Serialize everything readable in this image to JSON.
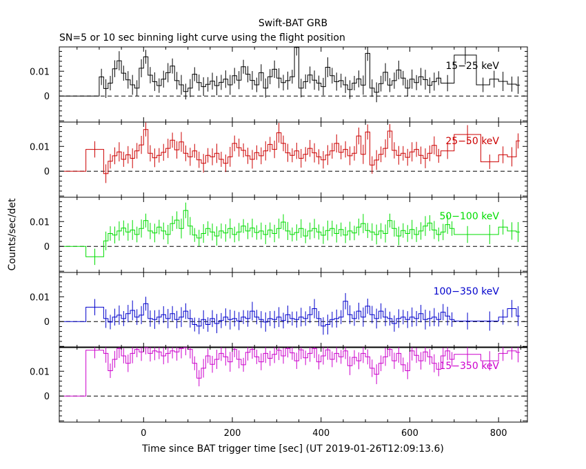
{
  "title": "Swift-BAT GRB",
  "subtitle": "SN=5 or 10 sec binning light curve using the flight position",
  "xlabel": "Time since BAT trigger time [sec] (UT 2019-01-26T12:09:13.6)",
  "ylabel": "Counts/sec/det",
  "x_tick_labels": [
    "0",
    "200",
    "400",
    "600",
    "800"
  ],
  "y_tick_labels": [
    "0",
    "0.01"
  ],
  "chart_data": {
    "type": "line",
    "title": "Swift-BAT GRB",
    "subtitle": "SN=5 or 10 sec binning light curve using the flight position",
    "xlabel": "Time since BAT trigger time [sec] (UT 2019-01-26T12:09:13.6)",
    "ylabel": "Counts/sec/det",
    "xlim": [
      -190,
      865
    ],
    "xticks": [
      0,
      200,
      400,
      600,
      800
    ],
    "grid": false,
    "panels": [
      {
        "name": "15-25 keV",
        "label": "15−25 keV",
        "color": "#000000",
        "ylim": [
          -0.0105,
          0.0198
        ],
        "yticks": [
          0,
          0.01
        ],
        "x": [
          -180,
          -100,
          -90,
          -80,
          -70,
          -60,
          -50,
          -40,
          -30,
          -20,
          -10,
          0,
          10,
          20,
          30,
          40,
          50,
          60,
          70,
          80,
          90,
          100,
          110,
          120,
          130,
          140,
          150,
          160,
          170,
          180,
          190,
          200,
          210,
          220,
          230,
          240,
          250,
          260,
          270,
          280,
          290,
          300,
          310,
          320,
          330,
          340,
          350,
          360,
          370,
          380,
          390,
          400,
          410,
          420,
          430,
          440,
          450,
          460,
          470,
          480,
          490,
          500,
          510,
          520,
          530,
          540,
          550,
          560,
          570,
          580,
          590,
          600,
          610,
          620,
          630,
          640,
          650,
          660,
          670,
          700,
          750,
          780,
          800,
          820,
          840
        ],
        "values": [
          0.0,
          0.0077,
          0.003,
          0.0052,
          0.011,
          0.0142,
          0.0092,
          0.0065,
          0.0045,
          0.0032,
          0.0112,
          0.0158,
          0.0084,
          0.0058,
          0.0042,
          0.0068,
          0.0094,
          0.0121,
          0.0062,
          0.0045,
          0.0018,
          0.0032,
          0.0088,
          0.0054,
          0.0038,
          0.0047,
          0.006,
          0.0042,
          0.0055,
          0.0068,
          0.0045,
          0.0082,
          0.0064,
          0.0118,
          0.0088,
          0.0063,
          0.0045,
          0.0094,
          0.0032,
          0.0078,
          0.0108,
          0.0072,
          0.0054,
          0.0062,
          0.0078,
          0.0196,
          0.0032,
          0.0058,
          0.0085,
          0.0064,
          0.0052,
          0.0038,
          0.0116,
          0.0082,
          0.0058,
          0.0062,
          0.0045,
          0.0026,
          0.0052,
          0.0069,
          0.0044,
          0.0172,
          0.0032,
          0.0015,
          0.005,
          0.0096,
          0.0044,
          0.0062,
          0.0105,
          0.0072,
          0.0032,
          0.0068,
          0.0054,
          0.0078,
          0.0066,
          0.0043,
          0.0058,
          0.0072,
          0.0052,
          0.0165,
          0.0045,
          0.0068,
          0.0059,
          0.0048,
          0.0044
        ]
      },
      {
        "name": "25-50 keV",
        "label": "25−50 keV",
        "color": "#cc0000",
        "ylim": [
          -0.0105,
          0.0198
        ],
        "yticks": [
          0,
          0.01
        ],
        "x": [
          -180,
          -130,
          -90,
          -80,
          -70,
          -60,
          -50,
          -40,
          -30,
          -20,
          -10,
          0,
          10,
          20,
          30,
          40,
          50,
          60,
          70,
          80,
          90,
          100,
          110,
          120,
          130,
          140,
          150,
          160,
          170,
          180,
          190,
          200,
          210,
          220,
          230,
          240,
          250,
          260,
          270,
          280,
          290,
          300,
          310,
          320,
          330,
          340,
          350,
          360,
          370,
          380,
          390,
          400,
          410,
          420,
          430,
          440,
          450,
          460,
          470,
          480,
          490,
          500,
          510,
          520,
          530,
          540,
          550,
          560,
          570,
          580,
          590,
          600,
          610,
          620,
          630,
          640,
          650,
          660,
          670,
          700,
          760,
          800,
          820,
          840
        ],
        "values": [
          0.0,
          0.0088,
          -0.001,
          0.004,
          0.0062,
          0.0078,
          0.0048,
          0.0066,
          0.0052,
          0.0082,
          0.0106,
          0.0168,
          0.0072,
          0.0054,
          0.0064,
          0.0076,
          0.0092,
          0.0125,
          0.0086,
          0.0118,
          0.0072,
          0.0058,
          0.0082,
          0.0046,
          0.0032,
          0.0064,
          0.0058,
          0.0072,
          0.0048,
          0.0032,
          0.0058,
          0.0112,
          0.0095,
          0.0084,
          0.0062,
          0.0048,
          0.0075,
          0.0062,
          0.0082,
          0.0108,
          0.0088,
          0.0155,
          0.0112,
          0.0074,
          0.0064,
          0.0082,
          0.0052,
          0.0068,
          0.0092,
          0.0074,
          0.0058,
          0.0046,
          0.0065,
          0.0082,
          0.0112,
          0.0076,
          0.0088,
          0.0062,
          0.0072,
          0.0142,
          0.0068,
          0.0158,
          0.0025,
          0.0045,
          0.0068,
          0.0092,
          0.0162,
          0.0084,
          0.0064,
          0.0072,
          0.0056,
          0.0078,
          0.0088,
          0.0064,
          0.0052,
          0.0072,
          0.0104,
          0.0062,
          0.0082,
          0.0148,
          0.0038,
          0.0066,
          0.0058,
          0.0122
        ]
      },
      {
        "name": "50-100 keV",
        "label": "50−100 keV",
        "color": "#00dd00",
        "ylim": [
          -0.0105,
          0.0198
        ],
        "yticks": [
          0,
          0.01
        ],
        "x": [
          -180,
          -130,
          -90,
          -80,
          -70,
          -60,
          -50,
          -40,
          -30,
          -20,
          -10,
          0,
          10,
          20,
          30,
          40,
          50,
          60,
          70,
          80,
          90,
          100,
          110,
          120,
          130,
          140,
          150,
          160,
          170,
          180,
          190,
          200,
          210,
          220,
          230,
          240,
          250,
          260,
          270,
          280,
          290,
          300,
          310,
          320,
          330,
          340,
          350,
          360,
          370,
          380,
          390,
          400,
          410,
          420,
          430,
          440,
          450,
          460,
          470,
          480,
          490,
          500,
          510,
          520,
          530,
          540,
          550,
          560,
          570,
          580,
          590,
          600,
          610,
          620,
          630,
          640,
          650,
          660,
          670,
          680,
          690,
          700,
          760,
          800,
          820,
          840
        ],
        "values": [
          0.0,
          -0.0042,
          0.0022,
          0.0052,
          0.0046,
          0.0062,
          0.0074,
          0.0058,
          0.0066,
          0.0048,
          0.0072,
          0.0104,
          0.0062,
          0.0054,
          0.0078,
          0.0062,
          0.0048,
          0.0092,
          0.0106,
          0.0072,
          0.0145,
          0.0082,
          0.0046,
          0.0034,
          0.0052,
          0.0072,
          0.0058,
          0.0042,
          0.0062,
          0.0054,
          0.0072,
          0.0048,
          0.0058,
          0.0082,
          0.0062,
          0.0074,
          0.0056,
          0.0062,
          0.0048,
          0.0066,
          0.0052,
          0.0072,
          0.0098,
          0.0062,
          0.0048,
          0.0056,
          0.0072,
          0.0042,
          0.0062,
          0.0072,
          0.0058,
          0.0045,
          0.0064,
          0.0072,
          0.0052,
          0.0068,
          0.0046,
          0.0062,
          0.0054,
          0.0078,
          0.0092,
          0.0064,
          0.0058,
          0.0048,
          0.0062,
          0.0052,
          0.0104,
          0.0072,
          0.0042,
          0.0064,
          0.0052,
          0.0068,
          0.0048,
          0.0062,
          0.0082,
          0.0094,
          0.0066,
          0.0048,
          0.0058,
          0.0088,
          0.0072,
          0.0048,
          0.0048,
          0.0078,
          0.0062,
          0.0058
        ]
      },
      {
        "name": "100-350 keV",
        "label": "100−350 keV",
        "color": "#0000cc",
        "ylim": [
          -0.0105,
          0.0198
        ],
        "yticks": [
          0,
          0.01
        ],
        "x": [
          -180,
          -130,
          -90,
          -80,
          -70,
          -60,
          -50,
          -40,
          -30,
          -20,
          -10,
          0,
          10,
          20,
          30,
          40,
          50,
          60,
          70,
          80,
          90,
          100,
          110,
          120,
          130,
          140,
          150,
          160,
          170,
          180,
          190,
          200,
          210,
          220,
          230,
          240,
          250,
          260,
          270,
          280,
          290,
          300,
          310,
          320,
          330,
          340,
          350,
          360,
          370,
          380,
          390,
          400,
          410,
          420,
          430,
          440,
          450,
          460,
          470,
          480,
          490,
          500,
          510,
          520,
          530,
          540,
          550,
          560,
          570,
          580,
          590,
          600,
          610,
          620,
          630,
          640,
          650,
          660,
          670,
          680,
          690,
          700,
          760,
          800,
          820,
          840
        ],
        "values": [
          0.0,
          0.0058,
          0.0012,
          -0.0002,
          0.0018,
          0.0026,
          0.0012,
          0.0032,
          0.0045,
          0.0018,
          0.0026,
          0.0072,
          0.0012,
          0.0008,
          0.0018,
          0.0028,
          0.0012,
          0.0032,
          0.0008,
          0.0018,
          0.0042,
          0.0012,
          -0.0012,
          -0.0018,
          0.0008,
          -0.0012,
          0.0012,
          -0.0008,
          0.0004,
          0.0018,
          0.0008,
          0.0012,
          0.0002,
          0.0018,
          0.0012,
          0.0042,
          0.0018,
          0.0008,
          -0.0002,
          0.0012,
          0.0008,
          0.0018,
          0.0004,
          0.0028,
          0.0012,
          0.0008,
          0.0018,
          0.0012,
          0.0028,
          0.0052,
          0.0012,
          -0.0018,
          -0.0012,
          0.0008,
          0.0012,
          0.0018,
          0.0082,
          0.0028,
          0.0012,
          0.0042,
          0.0018,
          0.0062,
          0.0028,
          0.0012,
          0.0042,
          0.0018,
          0.0012,
          -0.0008,
          0.0012,
          0.0018,
          0.0008,
          0.0018,
          0.0012,
          0.0032,
          0.0008,
          0.0012,
          0.0018,
          0.0008,
          0.0038,
          0.0022,
          0.0008,
          0.0002,
          0.0002,
          0.0018,
          0.0052,
          0.0022
        ]
      },
      {
        "name": "15-350 keV",
        "label": "15−350 keV",
        "color": "#cc00cc",
        "ylim": [
          -0.0105,
          0.0198
        ],
        "yticks": [
          0,
          0.01
        ],
        "x": [
          -180,
          -130,
          -90,
          -80,
          -70,
          -60,
          -50,
          -40,
          -30,
          -20,
          -10,
          0,
          10,
          20,
          30,
          40,
          50,
          60,
          70,
          80,
          90,
          100,
          110,
          120,
          130,
          140,
          150,
          160,
          170,
          180,
          190,
          200,
          210,
          220,
          230,
          240,
          250,
          260,
          270,
          280,
          290,
          300,
          310,
          320,
          330,
          340,
          350,
          360,
          370,
          380,
          390,
          400,
          410,
          420,
          430,
          440,
          450,
          460,
          470,
          480,
          490,
          500,
          510,
          520,
          530,
          540,
          550,
          560,
          570,
          580,
          590,
          600,
          610,
          620,
          630,
          640,
          650,
          660,
          670,
          680,
          690,
          700,
          760,
          800,
          820,
          840
        ],
        "values": [
          0.0,
          0.0185,
          0.0172,
          0.0102,
          0.0148,
          0.0192,
          0.0162,
          0.0132,
          0.0172,
          0.0188,
          0.0178,
          0.0196,
          0.0172,
          0.0182,
          0.0178,
          0.0162,
          0.0172,
          0.0182,
          0.0178,
          0.0192,
          0.0196,
          0.0188,
          0.0132,
          0.0072,
          0.0112,
          0.0162,
          0.0128,
          0.0148,
          0.0172,
          0.0158,
          0.0138,
          0.0188,
          0.0148,
          0.0126,
          0.0176,
          0.0188,
          0.0158,
          0.0138,
          0.0172,
          0.0152,
          0.0168,
          0.0185,
          0.0162,
          0.0192,
          0.0174,
          0.0142,
          0.0186,
          0.0154,
          0.0172,
          0.0192,
          0.0138,
          0.0162,
          0.0186,
          0.0148,
          0.0172,
          0.0158,
          0.0182,
          0.0122,
          0.0156,
          0.0142,
          0.0172,
          0.0158,
          0.0112,
          0.0088,
          0.0132,
          0.0158,
          0.0188,
          0.0142,
          0.0172,
          0.0126,
          0.0102,
          0.0182,
          0.0164,
          0.0142,
          0.0178,
          0.0158,
          0.0132,
          0.0108,
          0.0162,
          0.0182,
          0.0148,
          0.0168,
          0.0142,
          0.0172,
          0.0182,
          0.0176
        ]
      }
    ]
  }
}
